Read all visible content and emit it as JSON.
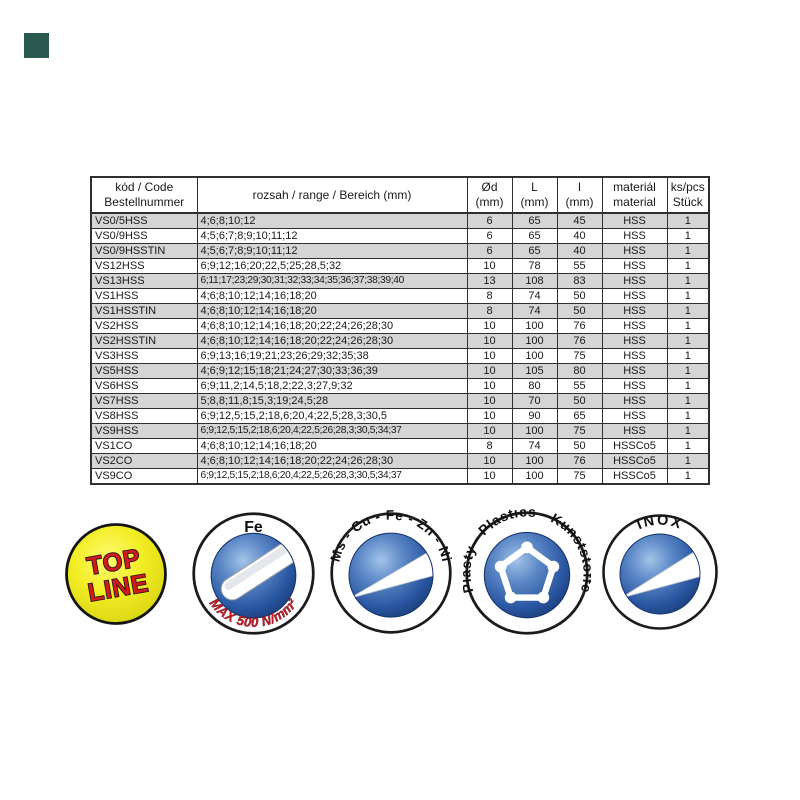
{
  "corner_marker": {
    "color": "#2a594f"
  },
  "table": {
    "headers": {
      "code_line1": "kód / Code",
      "code_line2": "Bestellnummer",
      "range": "rozsah / range / Bereich (mm)",
      "d_line1": "Ød",
      "d_line2": "(mm)",
      "L_line1": "L",
      "L_line2": "(mm)",
      "l_line1": "l",
      "l_line2": "(mm)",
      "material_line1": "materiál",
      "material_line2": "material",
      "pcs_line1": "ks/pcs",
      "pcs_line2": "Stück"
    },
    "row_shade_color": "#d5d5d5",
    "rows": [
      {
        "code": "VS0/5HSS",
        "range": "4;6;8;10;12",
        "d": "6",
        "L": "65",
        "l": "45",
        "material": "HSS",
        "pcs": "1"
      },
      {
        "code": "VS0/9HSS",
        "range": "4;5;6;7;8;9;10;11;12",
        "d": "6",
        "L": "65",
        "l": "40",
        "material": "HSS",
        "pcs": "1"
      },
      {
        "code": "VS0/9HSSTIN",
        "range": "4;5;6;7;8;9;10;11;12",
        "d": "6",
        "L": "65",
        "l": "40",
        "material": "HSS",
        "pcs": "1"
      },
      {
        "code": "VS12HSS",
        "range": "6;9;12;16;20;22,5;25;28,5;32",
        "d": "10",
        "L": "78",
        "l": "55",
        "material": "HSS",
        "pcs": "1"
      },
      {
        "code": "VS13HSS",
        "range": "6;11;17;23;29;30;31;32;33;34;35;36;37;38;39;40",
        "d": "13",
        "L": "108",
        "l": "83",
        "material": "HSS",
        "pcs": "1"
      },
      {
        "code": "VS1HSS",
        "range": "4;6;8;10;12;14;16;18;20",
        "d": "8",
        "L": "74",
        "l": "50",
        "material": "HSS",
        "pcs": "1"
      },
      {
        "code": "VS1HSSTIN",
        "range": "4;6;8;10;12;14;16;18;20",
        "d": "8",
        "L": "74",
        "l": "50",
        "material": "HSS",
        "pcs": "1"
      },
      {
        "code": "VS2HSS",
        "range": "4;6;8;10;12;14;16;18;20;22;24;26;28;30",
        "d": "10",
        "L": "100",
        "l": "76",
        "material": "HSS",
        "pcs": "1"
      },
      {
        "code": "VS2HSSTIN",
        "range": "4;6;8;10;12;14;16;18;20;22;24;26;28;30",
        "d": "10",
        "L": "100",
        "l": "76",
        "material": "HSS",
        "pcs": "1"
      },
      {
        "code": "VS3HSS",
        "range": "6;9;13;16;19;21;23;26;29;32;35;38",
        "d": "10",
        "L": "100",
        "l": "75",
        "material": "HSS",
        "pcs": "1"
      },
      {
        "code": "VS5HSS",
        "range": "4;6;9;12;15;18;21;24;27;30;33;36;39",
        "d": "10",
        "L": "105",
        "l": "80",
        "material": "HSS",
        "pcs": "1"
      },
      {
        "code": "VS6HSS",
        "range": "6;9;11,2;14,5;18,2;22,3;27,9;32",
        "d": "10",
        "L": "80",
        "l": "55",
        "material": "HSS",
        "pcs": "1"
      },
      {
        "code": "VS7HSS",
        "range": "5;8,8;11,8;15,3;19;24,5;28",
        "d": "10",
        "L": "70",
        "l": "50",
        "material": "HSS",
        "pcs": "1"
      },
      {
        "code": "VS8HSS",
        "range": "6;9;12,5;15,2;18,6;20,4;22,5;28,3;30,5",
        "d": "10",
        "L": "90",
        "l": "65",
        "material": "HSS",
        "pcs": "1"
      },
      {
        "code": "VS9HSS",
        "range": "6;9;12,5;15,2;18,6;20,4;22,5;26;28,3;30,5;34;37",
        "d": "10",
        "L": "100",
        "l": "75",
        "material": "HSS",
        "pcs": "1"
      },
      {
        "code": "VS1CO",
        "range": "4;6;8;10;12;14;16;18;20",
        "d": "8",
        "L": "74",
        "l": "50",
        "material": "HSSCo5",
        "pcs": "1"
      },
      {
        "code": "VS2CO",
        "range": "4;6;8;10;12;14;16;18;20;22;24;26;28;30",
        "d": "10",
        "L": "100",
        "l": "76",
        "material": "HSSCo5",
        "pcs": "1"
      },
      {
        "code": "VS9CO",
        "range": "6;9;12,5;15,2;18,6;20,4;22,5;26;28,3;30,5;34;37",
        "d": "10",
        "L": "100",
        "l": "75",
        "material": "HSSCo5",
        "pcs": "1"
      }
    ]
  },
  "badges": {
    "top_line": {
      "line1": "TOP",
      "line2": "LINE",
      "bg_color": "#f2ee29",
      "text_color": "#d11920"
    },
    "fe": {
      "top_label": "Fe",
      "bottom_label": "MAX 500 N/mm²",
      "bottom_color": "#c3202a"
    },
    "metals": {
      "label": "Ms - Cu - Fe - Zn - Ni"
    },
    "plastics": {
      "label": "Plasty - Plastics - Kunststoffe"
    },
    "inox": {
      "label": "INOX"
    },
    "sphere_color": "#2a58a5"
  }
}
